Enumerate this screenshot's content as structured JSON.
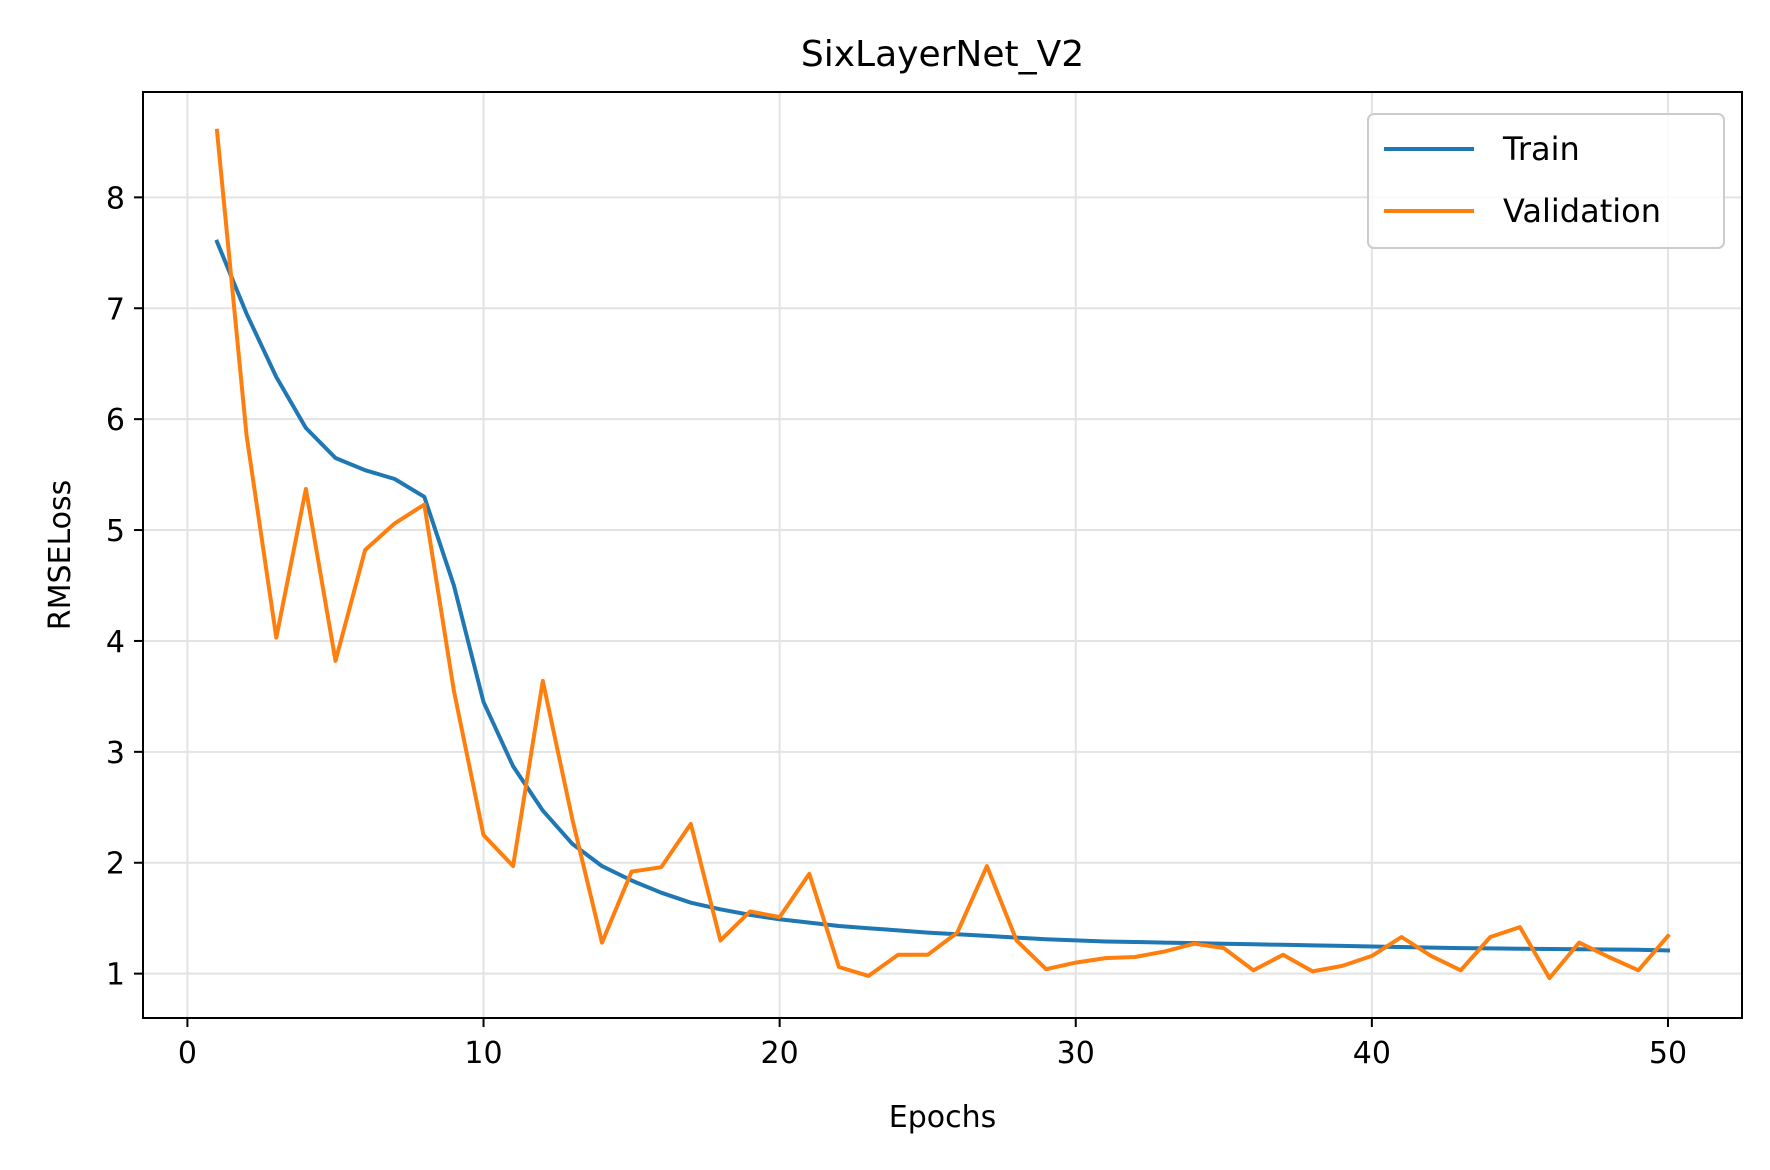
{
  "chart_data": {
    "type": "line",
    "title": "SixLayerNet_V2",
    "xlabel": "Epochs",
    "ylabel": "RMSELoss",
    "xlim": [
      -1.5,
      52.5
    ],
    "ylim": [
      0.6,
      8.95
    ],
    "xticks": [
      0,
      10,
      20,
      30,
      40,
      50
    ],
    "yticks": [
      1,
      2,
      3,
      4,
      5,
      6,
      7,
      8
    ],
    "grid": true,
    "legend_position": "top-right",
    "x": [
      1,
      2,
      3,
      4,
      5,
      6,
      7,
      8,
      9,
      10,
      11,
      12,
      13,
      14,
      15,
      16,
      17,
      18,
      19,
      20,
      21,
      22,
      23,
      24,
      25,
      26,
      27,
      28,
      29,
      30,
      31,
      32,
      33,
      34,
      35,
      36,
      37,
      38,
      39,
      40,
      41,
      42,
      43,
      44,
      45,
      46,
      47,
      48,
      49,
      50
    ],
    "series": [
      {
        "name": "Train",
        "color": "#1f77b4",
        "values": [
          7.6,
          6.95,
          6.38,
          5.92,
          5.65,
          5.54,
          5.46,
          5.3,
          4.5,
          3.45,
          2.87,
          2.47,
          2.17,
          1.97,
          1.84,
          1.73,
          1.64,
          1.58,
          1.53,
          1.49,
          1.46,
          1.43,
          1.41,
          1.39,
          1.37,
          1.355,
          1.34,
          1.325,
          1.31,
          1.3,
          1.29,
          1.285,
          1.28,
          1.275,
          1.27,
          1.265,
          1.26,
          1.255,
          1.25,
          1.245,
          1.24,
          1.235,
          1.23,
          1.228,
          1.225,
          1.222,
          1.22,
          1.218,
          1.215,
          1.21
        ]
      },
      {
        "name": "Validation",
        "color": "#ff7f0e",
        "values": [
          8.6,
          5.85,
          4.03,
          5.37,
          3.82,
          4.82,
          5.06,
          5.23,
          3.55,
          2.25,
          1.97,
          3.64,
          2.39,
          1.28,
          1.92,
          1.96,
          2.35,
          1.3,
          1.56,
          1.51,
          1.9,
          1.06,
          0.98,
          1.17,
          1.17,
          1.37,
          1.97,
          1.3,
          1.04,
          1.1,
          1.14,
          1.15,
          1.2,
          1.27,
          1.23,
          1.03,
          1.17,
          1.02,
          1.07,
          1.16,
          1.33,
          1.16,
          1.03,
          1.33,
          1.42,
          0.96,
          1.28,
          1.15,
          1.03,
          1.34
        ]
      }
    ]
  }
}
